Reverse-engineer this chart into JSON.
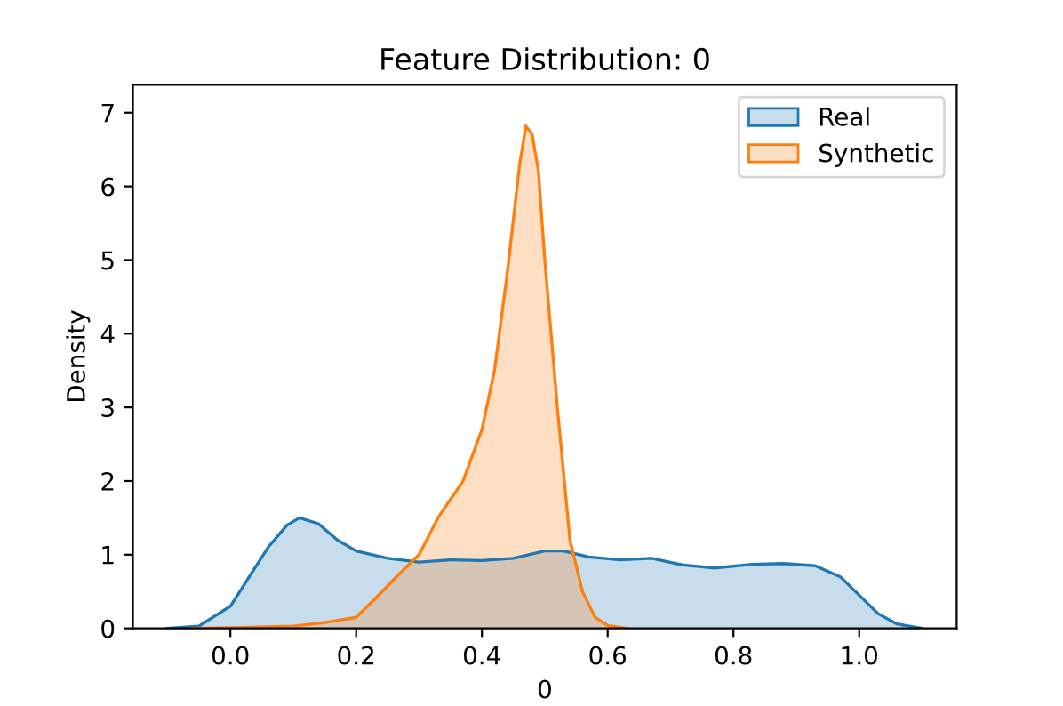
{
  "chart_data": {
    "type": "area",
    "title": "Feature Distribution: 0",
    "xlabel": "0",
    "ylabel": "Density",
    "series": [
      {
        "name": "Real",
        "color": "#1f77b4",
        "x": [
          -0.1,
          -0.05,
          0.0,
          0.03,
          0.06,
          0.09,
          0.11,
          0.14,
          0.17,
          0.2,
          0.25,
          0.3,
          0.35,
          0.4,
          0.45,
          0.5,
          0.53,
          0.57,
          0.62,
          0.67,
          0.72,
          0.77,
          0.83,
          0.88,
          0.93,
          0.97,
          1.0,
          1.03,
          1.06,
          1.1
        ],
        "values": [
          0,
          0.03,
          0.3,
          0.7,
          1.1,
          1.4,
          1.5,
          1.42,
          1.2,
          1.05,
          0.95,
          0.9,
          0.93,
          0.92,
          0.95,
          1.05,
          1.05,
          0.97,
          0.93,
          0.95,
          0.86,
          0.82,
          0.87,
          0.88,
          0.85,
          0.7,
          0.45,
          0.2,
          0.06,
          0
        ]
      },
      {
        "name": "Synthetic",
        "color": "#ff7f0e",
        "x": [
          -0.06,
          0.0,
          0.1,
          0.15,
          0.2,
          0.23,
          0.27,
          0.3,
          0.33,
          0.37,
          0.4,
          0.42,
          0.44,
          0.46,
          0.47,
          0.48,
          0.49,
          0.5,
          0.52,
          0.54,
          0.56,
          0.58,
          0.6,
          0.63
        ],
        "values": [
          0,
          0.01,
          0.03,
          0.08,
          0.15,
          0.4,
          0.75,
          1.0,
          1.5,
          2.0,
          2.7,
          3.5,
          4.8,
          6.3,
          6.82,
          6.7,
          6.2,
          5.0,
          3.0,
          1.2,
          0.5,
          0.15,
          0.04,
          0
        ]
      }
    ],
    "xlim": [
      -0.155,
      1.155
    ],
    "ylim": [
      0,
      7.38
    ],
    "xticks": [
      {
        "value": 0,
        "label": "0.0"
      },
      0.2,
      0.4,
      0.6,
      0.8,
      {
        "value": 1,
        "label": "1.0"
      }
    ],
    "yticks": [
      0,
      1,
      2,
      3,
      4,
      5,
      6,
      7
    ],
    "legend": "top right"
  }
}
